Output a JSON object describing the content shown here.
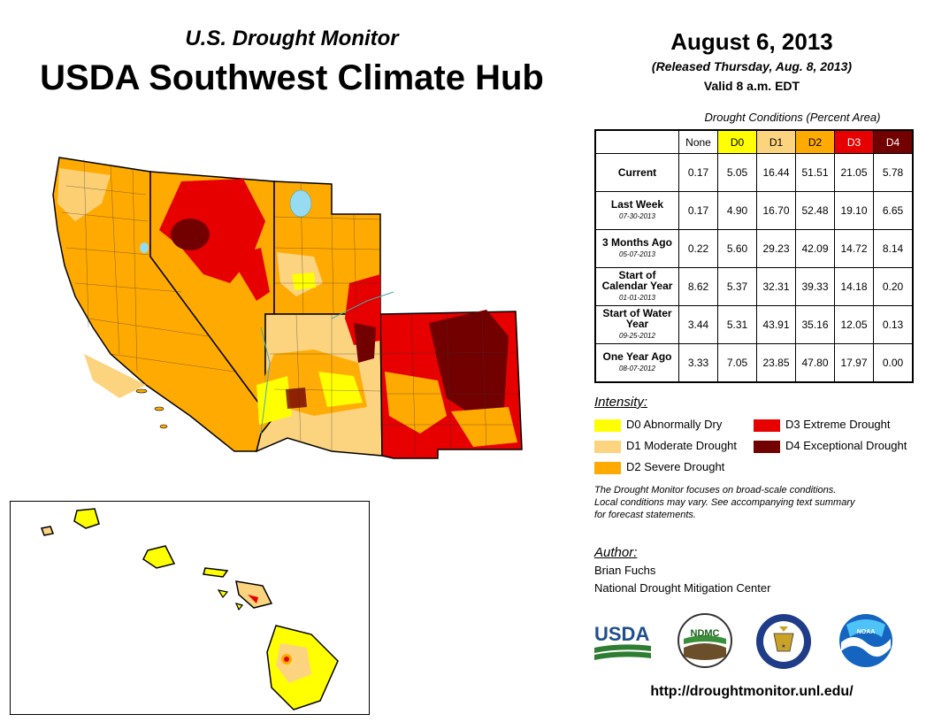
{
  "header": {
    "subtitle": "U.S. Drought Monitor",
    "title": "USDA Southwest Climate Hub",
    "date": "August 6, 2013",
    "released": "(Released Thursday, Aug. 8, 2013)",
    "valid": "Valid 8 a.m. EDT"
  },
  "table": {
    "caption": "Drought Conditions (Percent Area)",
    "columns": [
      "None",
      "D0",
      "D1",
      "D2",
      "D3",
      "D4"
    ],
    "rows": [
      {
        "label": "Current",
        "date": "",
        "values": [
          "0.17",
          "5.05",
          "16.44",
          "51.51",
          "21.05",
          "5.78"
        ]
      },
      {
        "label": "Last Week",
        "date": "07-30-2013",
        "values": [
          "0.17",
          "4.90",
          "16.70",
          "52.48",
          "19.10",
          "6.65"
        ]
      },
      {
        "label": "3 Months Ago",
        "date": "05-07-2013",
        "values": [
          "0.22",
          "5.60",
          "29.23",
          "42.09",
          "14.72",
          "8.14"
        ]
      },
      {
        "label": "Start of Calendar Year",
        "date": "01-01-2013",
        "values": [
          "8.62",
          "5.37",
          "32.31",
          "39.33",
          "14.18",
          "0.20"
        ]
      },
      {
        "label": "Start of Water Year",
        "date": "09-25-2012",
        "values": [
          "3.44",
          "5.31",
          "43.91",
          "35.16",
          "12.05",
          "0.13"
        ]
      },
      {
        "label": "One Year Ago",
        "date": "08-07-2012",
        "values": [
          "3.33",
          "7.05",
          "23.85",
          "47.80",
          "17.97",
          "0.00"
        ]
      }
    ]
  },
  "legend": {
    "title": "Intensity:",
    "items": [
      {
        "label": "D0 Abnormally Dry",
        "color": "#ffff00"
      },
      {
        "label": "D1 Moderate Drought",
        "color": "#fcd37f"
      },
      {
        "label": "D2 Severe Drought",
        "color": "#ffaa00"
      },
      {
        "label": "D3 Extreme Drought",
        "color": "#e60000"
      },
      {
        "label": "D4 Exceptional Drought",
        "color": "#730000"
      }
    ]
  },
  "note": {
    "line1": "The Drought Monitor focuses on broad-scale conditions.",
    "line2": "Local conditions may vary. See accompanying text summary",
    "line3": "for forecast statements."
  },
  "author": {
    "title": "Author:",
    "name": "Brian Fuchs",
    "org": "National Drought Mitigation Center"
  },
  "logos": {
    "usda": "USDA",
    "ndmc": "NDMC",
    "noaa": "NOAA"
  },
  "url": "http://droughtmonitor.unl.edu/",
  "colors": {
    "none": "#ffffff",
    "d0": "#ffff00",
    "d1": "#fcd37f",
    "d2": "#ffaa00",
    "d3": "#e60000",
    "d4": "#730000",
    "water": "#97dbf2"
  }
}
